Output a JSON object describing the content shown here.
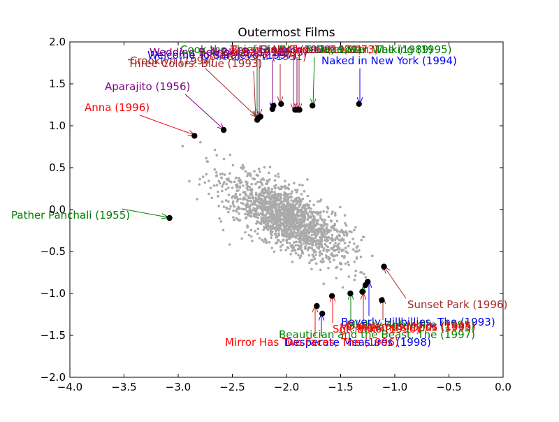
{
  "chart_data": {
    "type": "scatter",
    "title": "Outermost Films",
    "xlabel": "",
    "ylabel": "",
    "xlim": [
      -4.0,
      0.0
    ],
    "ylim": [
      -2.0,
      2.0
    ],
    "xticks": [
      "−4.0",
      "−3.5",
      "−3.0",
      "−2.5",
      "−2.0",
      "−1.5",
      "−1.0",
      "−0.5",
      "0.0"
    ],
    "xtick_values": [
      -4.0,
      -3.5,
      -3.0,
      -2.5,
      -2.0,
      -1.5,
      -1.0,
      -0.5,
      0.0
    ],
    "yticks": [
      "−2.0",
      "−1.5",
      "−1.0",
      "−0.5",
      "0.0",
      "0.5",
      "1.0",
      "1.5",
      "2.0"
    ],
    "ytick_values": [
      -2.0,
      -1.5,
      -1.0,
      -0.5,
      0.0,
      0.5,
      1.0,
      1.5,
      2.0
    ],
    "grid": false,
    "background_cloud": {
      "color": "#aaaaaa",
      "center": [
        -2.0,
        -0.1
      ],
      "approx_x_range": [
        -3.1,
        -1.05
      ],
      "approx_y_range": [
        -1.05,
        0.95
      ],
      "trend": "negative correlation"
    },
    "outliers": [
      {
        "label": "Pather Panchali (1955)",
        "x": -3.08,
        "y": -0.1,
        "color": "#008000"
      },
      {
        "label": "Anna (1996)",
        "x": -2.85,
        "y": 0.88,
        "color": "#ff0000"
      },
      {
        "label": "Aparajito (1956)",
        "x": -2.58,
        "y": 0.95,
        "color": "#800080"
      },
      {
        "label": "Three Colors: Blue (1993)",
        "x": -2.27,
        "y": 1.07,
        "color": "#a52a2a"
      },
      {
        "label": "Crooklyn (1994)",
        "x": -2.26,
        "y": 1.09,
        "color": "#a52a2a"
      },
      {
        "label": "Welcome To Sarajevo (1997)",
        "x": -2.25,
        "y": 1.1,
        "color": "#0000ff"
      },
      {
        "label": "Wedding Bell Blues (1996)",
        "x": -2.24,
        "y": 1.11,
        "color": "#800080"
      },
      {
        "label": "Cook the Thief His Wife & Her Lover, The (1989)",
        "x": -2.13,
        "y": 1.2,
        "color": "#008000"
      },
      {
        "label": "Angel Baby (1995)",
        "x": -2.12,
        "y": 1.24,
        "color": "#800080"
      },
      {
        "label": "Delicatessen (1991)",
        "x": -2.05,
        "y": 1.26,
        "color": "#a52a2a"
      },
      {
        "label": "Bread and Chocolate (1973)",
        "x": -1.92,
        "y": 1.19,
        "color": "#ff0000"
      },
      {
        "label": "Stalker (1979)",
        "x": -1.9,
        "y": 1.19,
        "color": "#800080"
      },
      {
        "label": "Nosferatu (1922)",
        "x": -1.88,
        "y": 1.19,
        "color": "#a52a2a"
      },
      {
        "label": "Dead Man Walking (1995)",
        "x": -1.76,
        "y": 1.24,
        "color": "#008000"
      },
      {
        "label": "Naked in New York (1994)",
        "x": -1.33,
        "y": 1.26,
        "color": "#0000ff"
      },
      {
        "label": "Sunset Park (1996)",
        "x": -1.1,
        "y": -0.68,
        "color": "#a52a2a"
      },
      {
        "label": "Beverly Hillbillies, The (1993)",
        "x": -1.25,
        "y": -0.86,
        "color": "#0000ff"
      },
      {
        "label": "Mighty Aphrodite (1995)",
        "x": -1.27,
        "y": -0.9,
        "color": "#008000"
      },
      {
        "label": "Dangerous Minds (1995)",
        "x": -1.12,
        "y": -1.08,
        "color": "#a52a2a"
      },
      {
        "label": "Mr. Holland's Opus (1995)",
        "x": -1.3,
        "y": -0.98,
        "color": "#ff0000"
      },
      {
        "label": "Beautician and the Beast, The (1997)",
        "x": -1.41,
        "y": -1.0,
        "color": "#008000"
      },
      {
        "label": "Sgt. Bilko (1996)",
        "x": -1.58,
        "y": -1.03,
        "color": "#ff0000"
      },
      {
        "label": "Desperate Measures (1998)",
        "x": -1.67,
        "y": -1.24,
        "color": "#0000ff"
      },
      {
        "label": "Mirror Has Two Faces, The (1996)",
        "x": -1.72,
        "y": -1.15,
        "color": "#ff0000"
      }
    ],
    "annotations": [
      {
        "label": "Pather Panchali (1955)",
        "color": "#008000",
        "lx": 16,
        "ly": 313,
        "tx": 240,
        "ty": 311
      },
      {
        "label": "Anna (1996)",
        "color": "#ff0000",
        "lx": 121,
        "ly": 159,
        "tx": 278,
        "ty": 193
      },
      {
        "label": "Aparajito (1956)",
        "color": "#800080",
        "lx": 150,
        "ly": 129,
        "tx": 320,
        "ty": 185
      },
      {
        "label": "Three Colors: Blue (1993)",
        "color": "#a52a2a",
        "lx": 183,
        "ly": 96,
        "tx": 366,
        "ty": 168
      },
      {
        "label": "Crooklyn (1994)",
        "color": "#a52a2a",
        "lx": 186,
        "ly": 92,
        "tx": 367,
        "ty": 167
      },
      {
        "label": "Welcome To Sarajevo (1997)",
        "color": "#0000ff",
        "lx": 211,
        "ly": 84,
        "tx": 390,
        "ty": 155
      },
      {
        "label": "Wedding Bell Blues (1996)",
        "color": "#800080",
        "lx": 214,
        "ly": 80,
        "tx": 371,
        "ty": 165
      },
      {
        "label": "Cook the Thief His Wife & Her Lover, The (1989)",
        "color": "#008000",
        "lx": 258,
        "ly": 76,
        "tx": 368,
        "ty": 170
      },
      {
        "label": "Angel Baby (1995)",
        "color": "#800080",
        "lx": 300,
        "ly": 80,
        "tx": 390,
        "ty": 156
      },
      {
        "label": "Delicatessen (1991)",
        "color": "#a52a2a",
        "lx": 288,
        "ly": 86,
        "tx": 401,
        "ty": 147
      },
      {
        "label": "Bread and Chocolate (1973)",
        "color": "#ff0000",
        "lx": 330,
        "ly": 76,
        "tx": 420,
        "ty": 157
      },
      {
        "label": "Stalker (1979)",
        "color": "#800080",
        "lx": 372,
        "ly": 76,
        "tx": 425,
        "ty": 157
      },
      {
        "label": "Nosferatu (1922)",
        "color": "#a52a2a",
        "lx": 390,
        "ly": 76,
        "tx": 428,
        "ty": 157
      },
      {
        "label": "Dead Man Walking (1995)",
        "color": "#008000",
        "lx": 452,
        "ly": 76,
        "tx": 448,
        "ty": 150
      },
      {
        "label": "Naked in New York (1994)",
        "color": "#0000ff",
        "lx": 460,
        "ly": 92,
        "tx": 515,
        "ty": 148
      },
      {
        "label": "Sunset Park (1996)",
        "color": "#a52a2a",
        "lx": 583,
        "ly": 441,
        "tx": 550,
        "ty": 382
      },
      {
        "label": "Beverly Hillbillies, The (1993)",
        "color": "#0000ff",
        "lx": 488,
        "ly": 466,
        "tx": 528,
        "ty": 403
      },
      {
        "label": "Mighty Aphrodite (1995)",
        "color": "#008000",
        "lx": 496,
        "ly": 470,
        "tx": 520,
        "ty": 410
      },
      {
        "label": "Dangerous Minds (1995)",
        "color": "#a52a2a",
        "lx": 496,
        "ly": 472,
        "tx": 548,
        "ty": 426
      },
      {
        "label": "Mr. Holland's Opus (1995)",
        "color": "#ff0000",
        "lx": 486,
        "ly": 474,
        "tx": 520,
        "ty": 420
      },
      {
        "label": "Beautician and the Beast, The (1997)",
        "color": "#008000",
        "lx": 399,
        "ly": 484,
        "tx": 502,
        "ty": 420
      },
      {
        "label": "Sgt. Bilko (1996)",
        "color": "#ff0000",
        "lx": 476,
        "ly": 476,
        "tx": 476,
        "ty": 423
      },
      {
        "label": "Desperate Measures (1998)",
        "color": "#0000ff",
        "lx": 408,
        "ly": 495,
        "tx": 460,
        "ty": 450
      },
      {
        "label": "Mirror Has Two Faces, The (1996)",
        "color": "#ff0000",
        "lx": 322,
        "ly": 495,
        "tx": 451,
        "ty": 438
      }
    ]
  }
}
